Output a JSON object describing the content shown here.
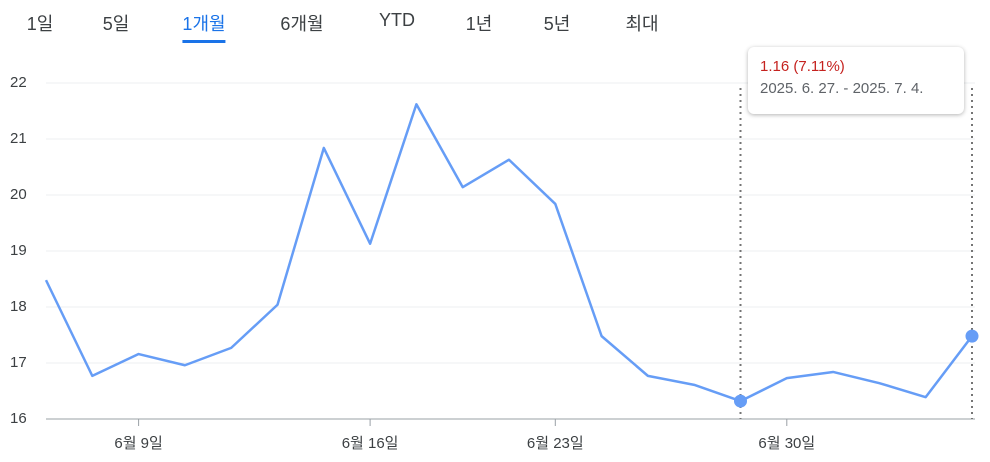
{
  "tabs": [
    "1일",
    "5일",
    "1개월",
    "6개월",
    "YTD",
    "1년",
    "5년",
    "최대"
  ],
  "active_tab": 2,
  "chart_data": {
    "type": "line",
    "categories": [
      null,
      null,
      "6월 9일",
      null,
      null,
      null,
      null,
      "6월 16일",
      null,
      null,
      null,
      "6월 23일",
      null,
      null,
      null,
      null,
      "6월 30일",
      null,
      null,
      null,
      null
    ],
    "series": [
      {
        "color": "#669df6",
        "values": [
          18.48,
          16.77,
          17.16,
          16.96,
          17.27,
          18.04,
          20.84,
          19.13,
          21.62,
          20.14,
          20.63,
          19.84,
          17.48,
          16.77,
          16.61,
          16.32,
          16.73,
          16.84,
          16.64,
          16.39,
          17.48
        ]
      }
    ],
    "ylim": [
      16,
      22
    ],
    "yticks": [
      16,
      17,
      18,
      19,
      20,
      21,
      22
    ],
    "grid": true,
    "selection": [
      15,
      20
    ],
    "tooltip": {
      "change": "1.16 (7.11%)",
      "range": "2025. 6. 27. - 2025. 7. 4."
    }
  }
}
